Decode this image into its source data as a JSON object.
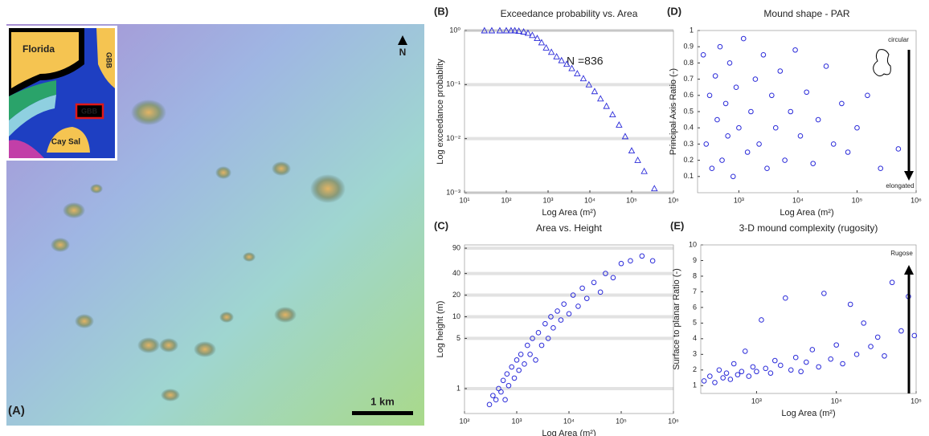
{
  "map": {
    "panel": "(A)",
    "north": "N",
    "scale": "1 km",
    "inset": {
      "land": "Florida",
      "bank_east": "GBB",
      "box": "GBB",
      "cay": "Cay Sal"
    }
  },
  "chart_data": [
    {
      "type": "scatter",
      "panel": "(B)",
      "title": "Exceedance probability vs. Area",
      "x_label": "Log Area (m²)",
      "y_label": "Log exceedance probablity",
      "annotations": [
        "N =836"
      ],
      "marker": "triangle",
      "color": "#2b2bd9",
      "xscale": "log",
      "yscale": "log",
      "grid": true,
      "xlim": [
        10,
        1000000
      ],
      "ylim": [
        0.001,
        1
      ],
      "xticks": [
        {
          "value": 10,
          "label": "10¹"
        },
        {
          "value": 100,
          "label": "10²"
        },
        {
          "value": 1000,
          "label": "10³"
        },
        {
          "value": 10000,
          "label": "10⁴"
        },
        {
          "value": 100000,
          "label": "10⁵"
        },
        {
          "value": 1000000,
          "label": "10⁶"
        }
      ],
      "yticks": [
        {
          "value": 0.001,
          "label": "10⁻³"
        },
        {
          "value": 0.01,
          "label": "10⁻²"
        },
        {
          "value": 0.1,
          "label": "10⁻¹"
        },
        {
          "value": 1,
          "label": "10⁰"
        }
      ],
      "x": [
        30,
        45,
        70,
        100,
        130,
        160,
        200,
        260,
        330,
        420,
        550,
        700,
        900,
        1200,
        1600,
        2100,
        2800,
        3700,
        5000,
        7000,
        9500,
        13000,
        18000,
        25000,
        35000,
        50000,
        70000,
        100000,
        140000,
        200000,
        350000
      ],
      "values": [
        1,
        1,
        1,
        1,
        1,
        1,
        0.98,
        0.95,
        0.9,
        0.82,
        0.72,
        0.6,
        0.48,
        0.4,
        0.33,
        0.28,
        0.24,
        0.2,
        0.16,
        0.13,
        0.1,
        0.075,
        0.055,
        0.04,
        0.028,
        0.018,
        0.011,
        0.006,
        0.004,
        0.0025,
        0.0012
      ]
    },
    {
      "type": "scatter",
      "panel": "(C)",
      "title": "Area vs. Height",
      "x_label": "Log Area (m²)",
      "y_label": "Log height (m)",
      "annotations": [],
      "marker": "circle",
      "color": "#2b2bd9",
      "xscale": "log",
      "yscale": "log",
      "grid": true,
      "xlim": [
        100,
        1000000
      ],
      "ylim": [
        0.45,
        100
      ],
      "xticks": [
        {
          "value": 100,
          "label": "10²"
        },
        {
          "value": 1000,
          "label": "10³"
        },
        {
          "value": 10000,
          "label": "10⁴"
        },
        {
          "value": 100000,
          "label": "10⁵"
        },
        {
          "value": 1000000,
          "label": "10⁶"
        }
      ],
      "yticks": [
        1,
        5,
        10,
        20,
        40,
        90
      ],
      "x": [
        300,
        350,
        400,
        450,
        500,
        550,
        600,
        650,
        700,
        800,
        900,
        1000,
        1100,
        1200,
        1400,
        1600,
        1800,
        2000,
        2300,
        2600,
        3000,
        3500,
        4000,
        4500,
        5000,
        6000,
        7000,
        8000,
        10000,
        12000,
        15000,
        18000,
        22000,
        30000,
        40000,
        50000,
        70000,
        100000,
        150000,
        250000,
        400000
      ],
      "values": [
        0.6,
        0.8,
        0.7,
        1,
        0.9,
        1.3,
        0.7,
        1.6,
        1.1,
        2,
        1.4,
        2.5,
        1.8,
        3,
        2.2,
        4,
        3,
        5,
        2.5,
        6,
        4,
        8,
        5,
        10,
        7,
        12,
        9,
        15,
        11,
        20,
        14,
        25,
        18,
        30,
        22,
        40,
        35,
        55,
        60,
        70,
        60
      ]
    },
    {
      "type": "scatter",
      "panel": "(D)",
      "title": "Mound shape  - PAR",
      "x_label": "Log Area (m²)",
      "y_label": "Principal Axis Ratio (-)",
      "annotations": [
        "circular",
        "elongated"
      ],
      "marker": "circle",
      "color": "#2b2bd9",
      "xscale": "log",
      "yscale": "linear",
      "grid": false,
      "xlim": [
        200,
        1000000
      ],
      "ylim": [
        0,
        1
      ],
      "xticks": [
        {
          "value": 1000,
          "label": "10³"
        },
        {
          "value": 10000,
          "label": "10⁴"
        },
        {
          "value": 100000,
          "label": "10⁵"
        },
        {
          "value": 1000000,
          "label": "10⁶"
        }
      ],
      "yticks": [
        0.1,
        0.2,
        0.3,
        0.4,
        0.5,
        0.6,
        0.7,
        0.8,
        0.9,
        1
      ],
      "x": [
        250,
        280,
        320,
        350,
        400,
        430,
        480,
        520,
        600,
        650,
        700,
        800,
        900,
        1000,
        1200,
        1400,
        1600,
        1900,
        2200,
        2600,
        3000,
        3600,
        4200,
        5000,
        6000,
        7500,
        9000,
        11000,
        14000,
        18000,
        22000,
        30000,
        40000,
        55000,
        70000,
        100000,
        150000,
        250000,
        500000
      ],
      "values": [
        0.85,
        0.3,
        0.6,
        0.15,
        0.72,
        0.45,
        0.9,
        0.2,
        0.55,
        0.35,
        0.8,
        0.1,
        0.65,
        0.4,
        0.95,
        0.25,
        0.5,
        0.7,
        0.3,
        0.85,
        0.15,
        0.6,
        0.4,
        0.75,
        0.2,
        0.5,
        0.88,
        0.35,
        0.62,
        0.18,
        0.45,
        0.78,
        0.3,
        0.55,
        0.25,
        0.4,
        0.6,
        0.15,
        0.27
      ]
    },
    {
      "type": "scatter",
      "panel": "(E)",
      "title": "3-D mound complexity (rugosity)",
      "x_label": "Log Area (m²)",
      "y_label": "Surface to planar Ratio (-)",
      "annotations": [
        "Rugose"
      ],
      "marker": "circle",
      "color": "#2b2bd9",
      "xscale": "log",
      "yscale": "linear",
      "grid": false,
      "xlim": [
        200,
        100000
      ],
      "ylim": [
        0.5,
        10
      ],
      "xticks": [
        {
          "value": 1000,
          "label": "10³"
        },
        {
          "value": 10000,
          "label": "10⁴"
        },
        {
          "value": 100000,
          "label": "10⁵"
        }
      ],
      "yticks": [
        1,
        2,
        3,
        4,
        5,
        6,
        7,
        8,
        9,
        10
      ],
      "x": [
        220,
        260,
        300,
        340,
        380,
        420,
        470,
        520,
        580,
        650,
        720,
        800,
        900,
        1000,
        1150,
        1300,
        1500,
        1700,
        2000,
        2300,
        2700,
        3100,
        3600,
        4200,
        5000,
        6000,
        7000,
        8500,
        10000,
        12000,
        15000,
        18000,
        22000,
        27000,
        33000,
        40000,
        50000,
        65000,
        80000,
        95000
      ],
      "values": [
        1.3,
        1.6,
        1.2,
        2,
        1.5,
        1.8,
        1.4,
        2.4,
        1.7,
        1.9,
        3.2,
        1.6,
        2.2,
        1.9,
        5.2,
        2.1,
        1.8,
        2.6,
        2.3,
        6.6,
        2,
        2.8,
        1.9,
        2.5,
        3.3,
        2.2,
        6.9,
        2.7,
        3.6,
        2.4,
        6.2,
        3,
        5,
        3.5,
        4.1,
        2.9,
        7.6,
        4.5,
        6.7,
        4.2
      ]
    }
  ]
}
